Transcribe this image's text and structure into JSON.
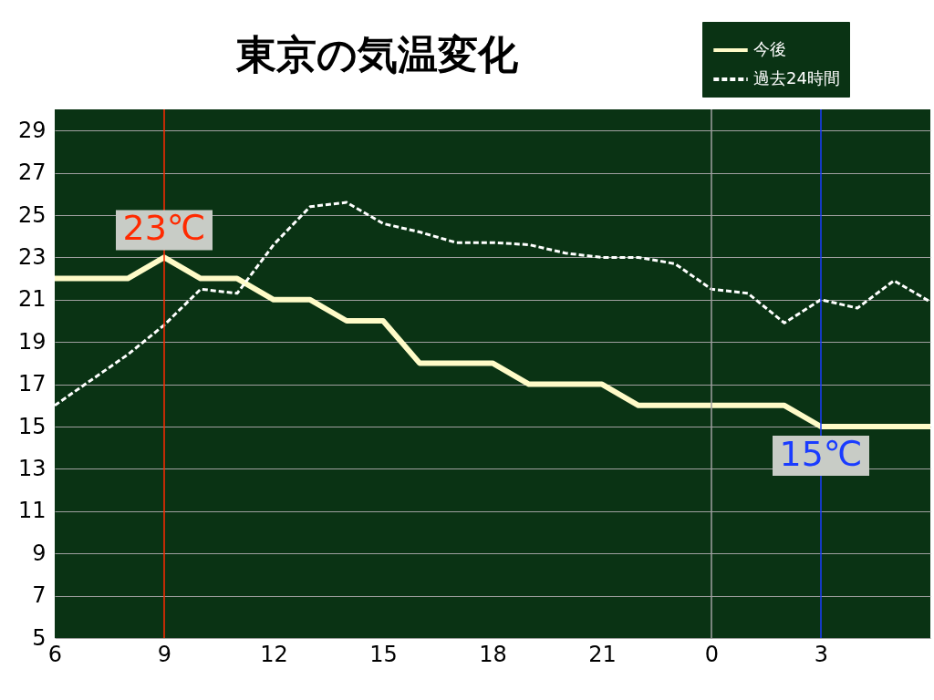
{
  "chart_data": {
    "type": "line",
    "title": "東京の気温変化",
    "categories": [
      "6",
      null,
      null,
      "9",
      null,
      null,
      "12",
      null,
      null,
      "15",
      null,
      null,
      "18",
      null,
      null,
      "21",
      null,
      null,
      "0",
      null,
      null,
      "3",
      null,
      null,
      null
    ],
    "series": [
      {
        "name": "今後",
        "color": "#fffbc8",
        "line_style": "solid",
        "values": [
          22,
          22,
          22,
          23,
          22,
          22,
          21,
          21,
          20,
          20,
          18,
          18,
          18,
          17,
          17,
          17,
          16,
          16,
          16,
          16,
          16,
          15,
          15,
          15,
          15
        ]
      },
      {
        "name": "過去24時間",
        "color": "#ffffff",
        "line_style": "dashed",
        "values": [
          16,
          17.2,
          18.4,
          19.8,
          21.5,
          21.3,
          23.6,
          25.4,
          25.6,
          24.6,
          24.2,
          23.7,
          23.7,
          23.6,
          23.2,
          23.0,
          23.0,
          22.7,
          21.5,
          21.3,
          19.9,
          21.0,
          20.6,
          21.9,
          20.9
        ]
      }
    ],
    "ylim": [
      5,
      30
    ],
    "yticks": [
      5,
      7,
      9,
      11,
      13,
      15,
      17,
      19,
      21,
      23,
      25,
      27,
      29
    ],
    "grid": "y",
    "ref_lines": [
      {
        "axis": "x",
        "value": "9",
        "color": "#ff2a00"
      },
      {
        "axis": "x",
        "value": "0",
        "color": "#a0a0a0"
      },
      {
        "axis": "x",
        "value": "3",
        "color": "#1a3cff"
      }
    ],
    "annotations": [
      {
        "text": "23℃",
        "x": "9",
        "y": 23
      },
      {
        "text": "15℃",
        "x": "3",
        "y": 15
      }
    ],
    "legend": "top right"
  }
}
